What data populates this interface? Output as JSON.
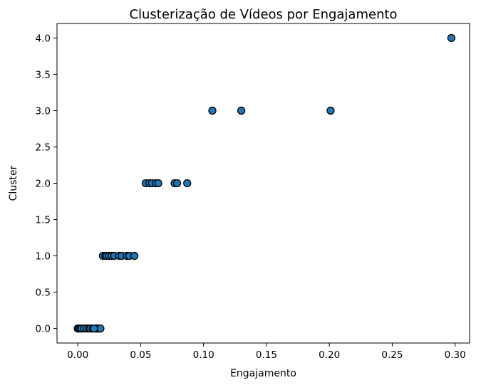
{
  "chart_data": {
    "type": "scatter",
    "title": "Clusterização de Vídeos por Engajamento",
    "xlabel": "Engajamento",
    "ylabel": "Cluster",
    "xlim": [
      -0.0165,
      0.3115
    ],
    "ylim": [
      -0.2,
      4.2
    ],
    "x_ticks": [
      "0.00",
      "0.05",
      "0.10",
      "0.15",
      "0.20",
      "0.25",
      "0.30"
    ],
    "y_ticks": [
      "0.0",
      "0.5",
      "1.0",
      "1.5",
      "2.0",
      "2.5",
      "3.0",
      "3.5",
      "4.0"
    ],
    "grid": false,
    "marker_color": "#1f77b4",
    "marker_edge_color": "#000000",
    "series": [
      {
        "points": [
          {
            "x": 0.0,
            "y": 0
          },
          {
            "x": 0.001,
            "y": 0
          },
          {
            "x": 0.002,
            "y": 0
          },
          {
            "x": 0.003,
            "y": 0
          },
          {
            "x": 0.005,
            "y": 0
          },
          {
            "x": 0.007,
            "y": 0
          },
          {
            "x": 0.009,
            "y": 0
          },
          {
            "x": 0.01,
            "y": 0
          },
          {
            "x": 0.012,
            "y": 0
          },
          {
            "x": 0.014,
            "y": 0
          },
          {
            "x": 0.015,
            "y": 0
          },
          {
            "x": 0.016,
            "y": 0
          },
          {
            "x": 0.017,
            "y": 0
          },
          {
            "x": 0.018,
            "y": 0
          },
          {
            "x": 0.013,
            "y": 0
          },
          {
            "x": 0.02,
            "y": 1
          },
          {
            "x": 0.022,
            "y": 1
          },
          {
            "x": 0.023,
            "y": 1
          },
          {
            "x": 0.025,
            "y": 1
          },
          {
            "x": 0.027,
            "y": 1
          },
          {
            "x": 0.029,
            "y": 1
          },
          {
            "x": 0.033,
            "y": 1
          },
          {
            "x": 0.035,
            "y": 1
          },
          {
            "x": 0.039,
            "y": 1
          },
          {
            "x": 0.041,
            "y": 1
          },
          {
            "x": 0.045,
            "y": 1
          },
          {
            "x": 0.054,
            "y": 2
          },
          {
            "x": 0.057,
            "y": 2
          },
          {
            "x": 0.059,
            "y": 2
          },
          {
            "x": 0.062,
            "y": 2
          },
          {
            "x": 0.064,
            "y": 2
          },
          {
            "x": 0.077,
            "y": 2
          },
          {
            "x": 0.079,
            "y": 2
          },
          {
            "x": 0.087,
            "y": 2
          },
          {
            "x": 0.107,
            "y": 3
          },
          {
            "x": 0.13,
            "y": 3
          },
          {
            "x": 0.201,
            "y": 3
          },
          {
            "x": 0.297,
            "y": 4
          }
        ]
      }
    ]
  }
}
